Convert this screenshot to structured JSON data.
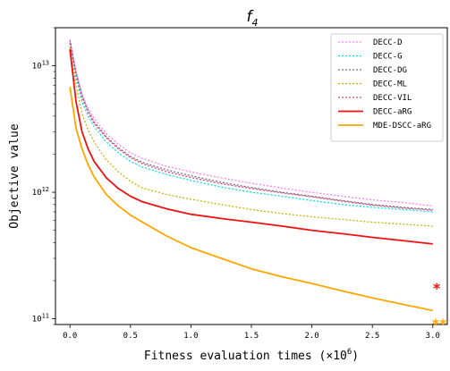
{
  "chart_data": {
    "type": "line",
    "title": "f",
    "title_subscript": "4",
    "xlabel": "Fitness evaluation times (×10",
    "xlabel_exponent": "6",
    "xlabel_close": ")",
    "ylabel": "Objective value",
    "xlim": [
      -0.12,
      3.12
    ],
    "ylim": [
      90000000000,
      20000000000000
    ],
    "yscale": "log",
    "xticks": [
      0.0,
      0.5,
      1.0,
      1.5,
      2.0,
      2.5,
      3.0
    ],
    "xtick_labels": [
      "0.0",
      "0.5",
      "1.0",
      "1.5",
      "2.0",
      "2.5",
      "3.0"
    ],
    "ytick_labels": [
      {
        "base": "10",
        "exp": "11",
        "value": 100000000000
      },
      {
        "base": "10",
        "exp": "12",
        "value": 1000000000000
      },
      {
        "base": "10",
        "exp": "13",
        "value": 10000000000000
      }
    ],
    "legend_position": "top-right",
    "x": [
      0.0,
      0.05,
      0.1,
      0.15,
      0.2,
      0.3,
      0.4,
      0.5,
      0.6,
      0.8,
      1.0,
      1.25,
      1.5,
      1.75,
      2.0,
      2.25,
      2.5,
      2.75,
      3.0
    ],
    "series": [
      {
        "name": "DECC-D",
        "color": "#ff80ff",
        "dash": "2,2",
        "width": 1.3,
        "values": [
          15500000000000.0,
          9000000000000.0,
          6000000000000.0,
          4600000000000.0,
          3800000000000.0,
          2900000000000.0,
          2400000000000.0,
          2050000000000.0,
          1850000000000.0,
          1600000000000.0,
          1450000000000.0,
          1300000000000.0,
          1180000000000.0,
          1080000000000.0,
          1000000000000.0,
          930000000000.0,
          870000000000.0,
          830000000000.0,
          780000000000.0
        ]
      },
      {
        "name": "DECC-G",
        "color": "#00e5ee",
        "dash": "2,2",
        "width": 1.3,
        "values": [
          15000000000000.0,
          8000000000000.0,
          5200000000000.0,
          4000000000000.0,
          3300000000000.0,
          2500000000000.0,
          2050000000000.0,
          1750000000000.0,
          1580000000000.0,
          1380000000000.0,
          1240000000000.0,
          1100000000000.0,
          1000000000000.0,
          930000000000.0,
          860000000000.0,
          800000000000.0,
          760000000000.0,
          730000000000.0,
          700000000000.0
        ]
      },
      {
        "name": "DECC-DG",
        "color": "#707070",
        "dash": "2,2",
        "width": 1.3,
        "values": [
          16000000000000.0,
          8800000000000.0,
          5800000000000.0,
          4400000000000.0,
          3600000000000.0,
          2750000000000.0,
          2250000000000.0,
          1920000000000.0,
          1720000000000.0,
          1500000000000.0,
          1350000000000.0,
          1200000000000.0,
          1090000000000.0,
          1000000000000.0,
          930000000000.0,
          860000000000.0,
          800000000000.0,
          760000000000.0,
          730000000000.0
        ]
      },
      {
        "name": "DECC-ML",
        "color": "#c8b400",
        "dash": "2,2",
        "width": 1.3,
        "values": [
          14000000000000.0,
          7000000000000.0,
          4200000000000.0,
          3100000000000.0,
          2500000000000.0,
          1800000000000.0,
          1450000000000.0,
          1220000000000.0,
          1080000000000.0,
          960000000000.0,
          880000000000.0,
          800000000000.0,
          730000000000.0,
          680000000000.0,
          640000000000.0,
          610000000000.0,
          580000000000.0,
          560000000000.0,
          540000000000.0
        ]
      },
      {
        "name": "DECC-VIL",
        "color": "#e0407e",
        "dash": "2,2",
        "width": 1.3,
        "values": [
          15200000000000.0,
          8600000000000.0,
          5600000000000.0,
          4300000000000.0,
          3500000000000.0,
          2700000000000.0,
          2200000000000.0,
          1880000000000.0,
          1680000000000.0,
          1450000000000.0,
          1310000000000.0,
          1170000000000.0,
          1070000000000.0,
          990000000000.0,
          920000000000.0,
          850000000000.0,
          790000000000.0,
          750000000000.0,
          720000000000.0
        ]
      },
      {
        "name": "DECC-aRG",
        "color": "#ee1111",
        "dash": "",
        "width": 1.8,
        "values": [
          13500000000000.0,
          5200000000000.0,
          3000000000000.0,
          2200000000000.0,
          1750000000000.0,
          1300000000000.0,
          1070000000000.0,
          930000000000.0,
          840000000000.0,
          740000000000.0,
          670000000000.0,
          620000000000.0,
          580000000000.0,
          540000000000.0,
          500000000000.0,
          470000000000.0,
          440000000000.0,
          415000000000.0,
          390000000000.0
        ]
      },
      {
        "name": "MDE-DSCC-aRG",
        "color": "#ffa500",
        "dash": "",
        "width": 1.8,
        "values": [
          6800000000000.0,
          3200000000000.0,
          2200000000000.0,
          1650000000000.0,
          1320000000000.0,
          960000000000.0,
          780000000000.0,
          660000000000.0,
          580000000000.0,
          450000000000.0,
          365000000000.0,
          300000000000.0,
          248000000000.0,
          215000000000.0,
          190000000000.0,
          166000000000.0,
          146000000000.0,
          130000000000.0,
          116000000000.0
        ]
      }
    ],
    "markers": [
      {
        "label": "*",
        "color": "#ee1111"
      },
      {
        "label": "**",
        "color": "#ffa500"
      }
    ]
  }
}
